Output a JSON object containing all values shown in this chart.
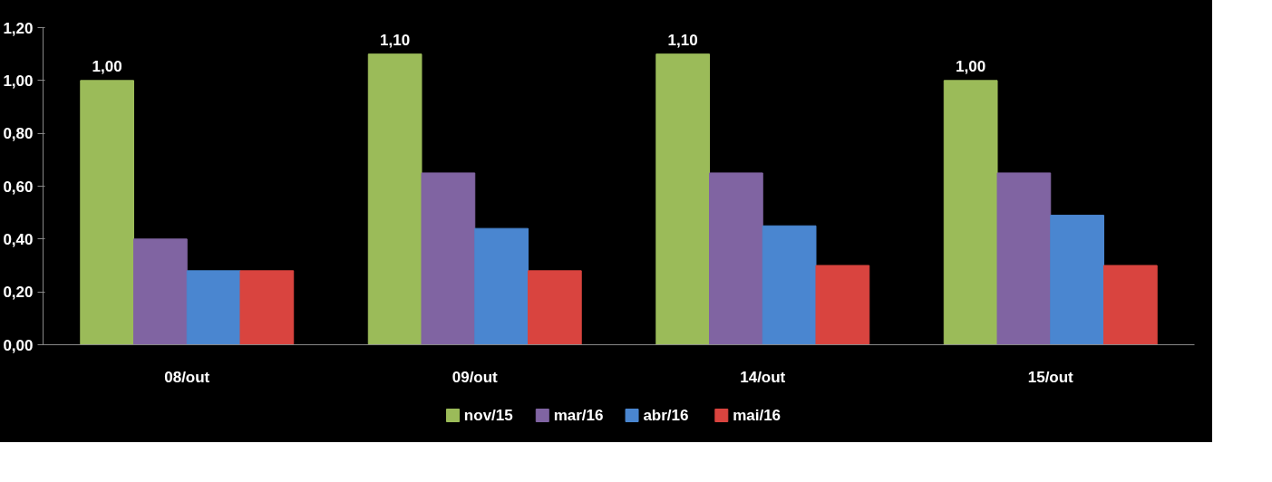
{
  "chart_data": {
    "type": "bar",
    "categories": [
      "08/out",
      "09/out",
      "14/out",
      "15/out"
    ],
    "series": [
      {
        "name": "nov/15",
        "color": "#9bbb59",
        "values": [
          1.0,
          1.1,
          1.1,
          1.0
        ],
        "value_labels": [
          "1,00",
          "1,10",
          "1,10",
          "1,00"
        ]
      },
      {
        "name": "mar/16",
        "color": "#8064a2",
        "values": [
          0.4,
          0.65,
          0.65,
          0.65
        ]
      },
      {
        "name": "abr/16",
        "color": "#4a86d0",
        "values": [
          0.28,
          0.44,
          0.45,
          0.49
        ]
      },
      {
        "name": "mai/16",
        "color": "#d9443f",
        "values": [
          0.28,
          0.28,
          0.3,
          0.3
        ]
      }
    ],
    "ylim": [
      0,
      1.2
    ],
    "yticks": [
      {
        "value": 0,
        "label": "0,00"
      },
      {
        "value": 0.2,
        "label": "0,20"
      },
      {
        "value": 0.4,
        "label": "0,40"
      },
      {
        "value": 0.6,
        "label": "0,60"
      },
      {
        "value": 0.8,
        "label": "0,80"
      },
      {
        "value": 1.0,
        "label": "1,00"
      },
      {
        "value": 1.2,
        "label": "1,20"
      }
    ],
    "legend": "bottom"
  }
}
